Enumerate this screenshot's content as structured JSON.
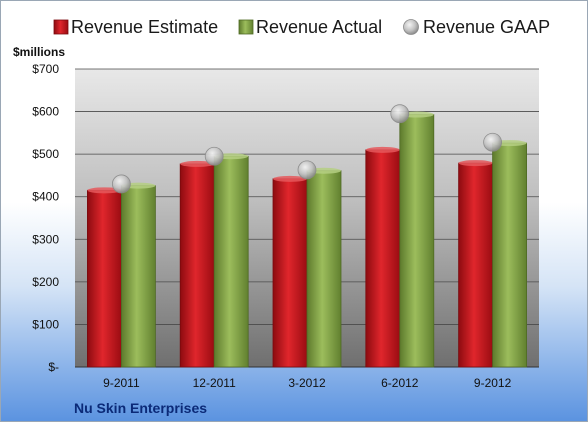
{
  "chart_data": {
    "type": "bar",
    "categories": [
      "9-2011",
      "12-2011",
      "3-2012",
      "6-2012",
      "9-2012"
    ],
    "series": [
      {
        "name": "Revenue Estimate",
        "marker": "bar",
        "color": "#c8141c",
        "values": [
          415,
          477,
          442,
          510,
          479
        ]
      },
      {
        "name": "Revenue Actual",
        "marker": "bar",
        "color": "#8aab4e",
        "values": [
          426,
          495,
          461,
          593,
          526
        ]
      },
      {
        "name": "Revenue GAAP",
        "marker": "circle",
        "color": "#b9b9b9",
        "values": [
          430,
          495,
          463,
          595,
          528
        ]
      }
    ],
    "ylabel": "$millions",
    "ylim": [
      0,
      700
    ],
    "yticks": [
      0,
      100,
      200,
      300,
      400,
      500,
      600,
      700
    ],
    "ytick_labels": [
      "$-",
      "$100",
      "$200",
      "$300",
      "$400",
      "$500",
      "$600",
      "$700"
    ],
    "grid": true,
    "legend_position": "top"
  },
  "company_name": "Nu Skin Enterprises"
}
